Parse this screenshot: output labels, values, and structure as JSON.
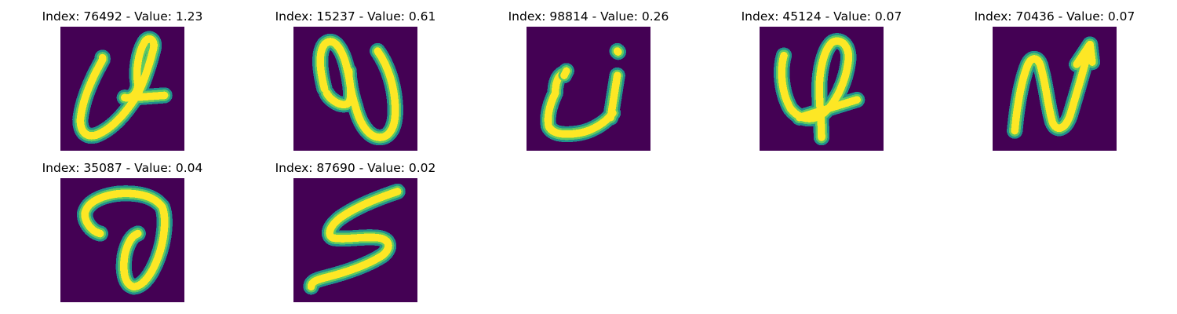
{
  "panels": [
    {
      "title": "Index: 76492 - Value: 1.23",
      "index": 76492,
      "value": 1.23
    },
    {
      "title": "Index: 15237 - Value: 0.61",
      "index": 15237,
      "value": 0.61
    },
    {
      "title": "Index: 98814 - Value: 0.26",
      "index": 98814,
      "value": 0.26
    },
    {
      "title": "Index: 45124 - Value: 0.07",
      "index": 45124,
      "value": 0.07
    },
    {
      "title": "Index: 70436 - Value: 0.07",
      "index": 70436,
      "value": 0.07
    },
    {
      "title": "Index: 35087 - Value: 0.04",
      "index": 35087,
      "value": 0.04
    },
    {
      "title": "Index: 87690 - Value: 0.02",
      "index": 87690,
      "value": 0.02
    }
  ],
  "colors": {
    "background": "#440154",
    "stroke_mid": "#21918c",
    "stroke_core": "#fde725",
    "stroke_edge": "#5ec962"
  }
}
